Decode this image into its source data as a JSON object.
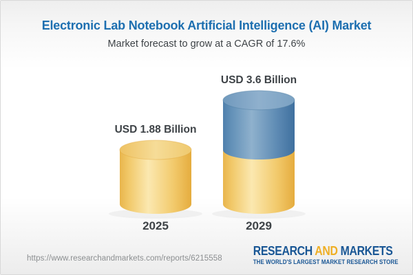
{
  "header": {
    "title": "Electronic Lab Notebook Artificial Intelligence (AI) Market",
    "subtitle": "Market forecast to grow at a CAGR of 17.6%",
    "title_color": "#1d6fb0",
    "text_color": "#3e4347"
  },
  "chart_data": {
    "type": "bar",
    "subtype": "3d-stacked-cylinder",
    "title": "Electronic Lab Notebook Artificial Intelligence (AI) Market",
    "subtitle": "Market forecast to grow at a CAGR of 17.6%",
    "unit": "USD Billion",
    "cagr_pct": 17.6,
    "categories": [
      "2025",
      "2029"
    ],
    "totals": [
      1.88,
      3.6
    ],
    "value_labels": [
      "USD 1.88 Billion",
      "USD 3.6 Billion"
    ],
    "segments": [
      [
        {
          "palette": "gold",
          "value": 1.88
        }
      ],
      [
        {
          "palette": "gold",
          "value": 1.88
        },
        {
          "palette": "blue",
          "value": 1.72
        }
      ]
    ],
    "legend_position": "none",
    "axes": "none",
    "grid": false,
    "label_color": "#3e4347",
    "palettes": {
      "gold": {
        "body": [
          [
            0,
            "#e9b54c"
          ],
          [
            0.12,
            "#f1c868"
          ],
          [
            0.4,
            "#fbe8b0"
          ],
          [
            0.75,
            "#f2ca6c"
          ],
          [
            1,
            "#e5ac3e"
          ]
        ],
        "cap": [
          [
            0,
            "#eec262"
          ],
          [
            0.5,
            "#f6dc98"
          ],
          [
            1,
            "#efc96e"
          ]
        ],
        "rim": "#e2a93e"
      },
      "blue": {
        "body": [
          [
            0,
            "#4f80ad"
          ],
          [
            0.12,
            "#6391b8"
          ],
          [
            0.4,
            "#8fb1cd"
          ],
          [
            0.75,
            "#5e8bb4"
          ],
          [
            1,
            "#3f709f"
          ]
        ],
        "cap": [
          [
            0,
            "#7099bd"
          ],
          [
            0.5,
            "#8fb0cd"
          ],
          [
            1,
            "#7ba2c3"
          ]
        ],
        "rim": "#49799f"
      }
    }
  },
  "footer": {
    "url": "https://www.researchandmarkets.com/reports/6215558",
    "url_color": "#8b8e90",
    "logo": {
      "word1": "RESEARCH",
      "word2": "AND",
      "word3": "MARKETS",
      "tagline": "THE WORLD'S LARGEST MARKET RESEARCH STORE",
      "navy": "#1a5795",
      "gold": "#efaf25"
    }
  }
}
